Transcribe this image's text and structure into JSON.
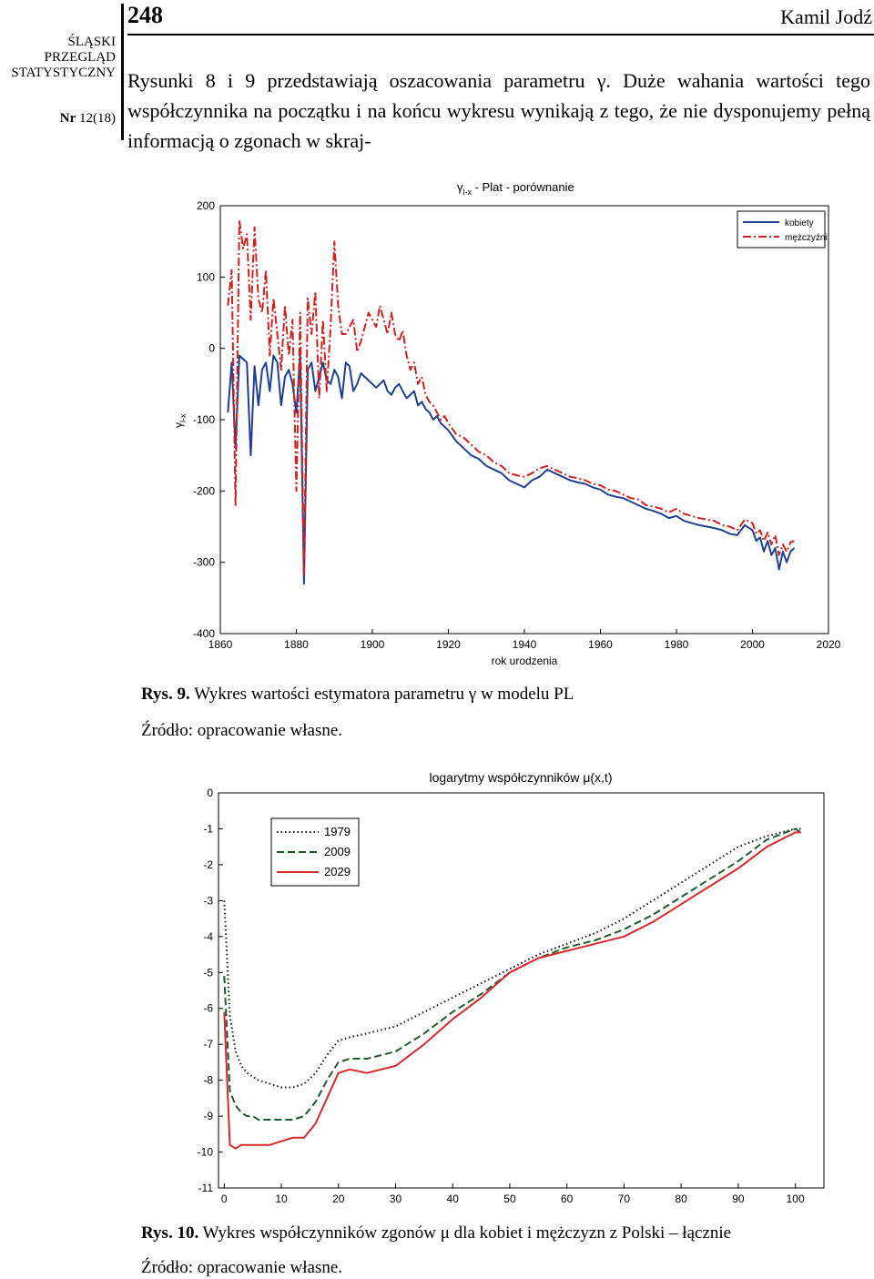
{
  "header": {
    "page_number": "248",
    "author": "Kamil Jodź",
    "journal_lines": [
      "ŚLĄSKI",
      "PRZEGLĄD",
      "STATYSTYCZNY"
    ],
    "issue_prefix": "Nr",
    "issue_number": "12(18)"
  },
  "body_text": "Rysunki 8 i 9 przedstawiają oszacowania parametru γ. Duże wahania wartości tego współczynnika na początku i na końcu wykresu wynikają z tego, że nie dysponujemy pełną informacją o zgonach w skraj-",
  "figure9": {
    "caption_label": "Rys. 9.",
    "caption_text": "Wykres wartości estymatora parametru γ w modelu PL",
    "source": "Źródło: opracowanie własne."
  },
  "figure10": {
    "caption_label": "Rys. 10.",
    "caption_text": "Wykres współczynników zgonów μ dla kobiet i mężczyzn z Polski – łącznie",
    "source": "Źródło: opracowanie własne."
  },
  "chart_data": [
    {
      "type": "line",
      "title_symbol": "γ",
      "title_subscript": "l-x",
      "title_rest": " - Plat - porównanie",
      "ylabel_symbol": "γ",
      "ylabel_subscript": "l-x",
      "xlabel": "rok urodzenia",
      "xlim": [
        1860,
        2020
      ],
      "ylim": [
        -400,
        200
      ],
      "xticks": [
        1860,
        1880,
        1900,
        1920,
        1940,
        1960,
        1980,
        2000,
        2020
      ],
      "yticks": [
        200,
        100,
        0,
        -100,
        -200,
        -300,
        -400
      ],
      "legend_position": "top-right",
      "series": [
        {
          "name": "kobiety",
          "color": "#1f3f8f",
          "style": "solid",
          "x": [
            1862,
            1863,
            1864,
            1865,
            1866,
            1867,
            1868,
            1869,
            1870,
            1871,
            1872,
            1873,
            1874,
            1875,
            1876,
            1877,
            1878,
            1879,
            1880,
            1881,
            1882,
            1883,
            1884,
            1885,
            1886,
            1887,
            1888,
            1889,
            1890,
            1891,
            1892,
            1893,
            1894,
            1895,
            1896,
            1897,
            1898,
            1899,
            1900,
            1901,
            1902,
            1903,
            1904,
            1905,
            1906,
            1907,
            1908,
            1909,
            1910,
            1911,
            1912,
            1913,
            1914,
            1915,
            1916,
            1917,
            1918,
            1919,
            1920,
            1922,
            1924,
            1926,
            1928,
            1930,
            1932,
            1934,
            1936,
            1938,
            1940,
            1942,
            1944,
            1946,
            1948,
            1950,
            1952,
            1954,
            1956,
            1958,
            1960,
            1962,
            1964,
            1966,
            1968,
            1970,
            1972,
            1974,
            1976,
            1978,
            1980,
            1982,
            1984,
            1986,
            1988,
            1990,
            1992,
            1994,
            1996,
            1998,
            2000,
            2001,
            2002,
            2003,
            2004,
            2005,
            2006,
            2007,
            2008,
            2009,
            2010,
            2011
          ],
          "values": [
            -90,
            -20,
            -140,
            -10,
            -15,
            -20,
            -150,
            -25,
            -80,
            -30,
            -20,
            -60,
            -10,
            -20,
            -80,
            -40,
            -30,
            -50,
            -90,
            -10,
            -330,
            -30,
            -20,
            -60,
            -40,
            -20,
            -45,
            -50,
            -30,
            -40,
            -70,
            -20,
            -25,
            -60,
            -50,
            -35,
            -40,
            -45,
            -50,
            -55,
            -50,
            -45,
            -60,
            -65,
            -55,
            -50,
            -60,
            -70,
            -65,
            -60,
            -80,
            -75,
            -85,
            -90,
            -100,
            -95,
            -105,
            -110,
            -115,
            -130,
            -140,
            -150,
            -155,
            -165,
            -170,
            -175,
            -185,
            -190,
            -195,
            -185,
            -180,
            -170,
            -175,
            -180,
            -185,
            -188,
            -190,
            -195,
            -198,
            -205,
            -208,
            -210,
            -215,
            -220,
            -225,
            -228,
            -232,
            -238,
            -235,
            -242,
            -245,
            -248,
            -250,
            -252,
            -255,
            -260,
            -262,
            -248,
            -255,
            -270,
            -265,
            -285,
            -270,
            -290,
            -280,
            -310,
            -285,
            -300,
            -285,
            -280
          ]
        },
        {
          "name": "mężczyźni",
          "color": "#cc2222",
          "style": "dashdot",
          "x": [
            1862,
            1863,
            1864,
            1865,
            1866,
            1867,
            1868,
            1869,
            1870,
            1871,
            1872,
            1873,
            1874,
            1875,
            1876,
            1877,
            1878,
            1879,
            1880,
            1881,
            1882,
            1883,
            1884,
            1885,
            1886,
            1887,
            1888,
            1889,
            1890,
            1891,
            1892,
            1893,
            1894,
            1895,
            1896,
            1897,
            1898,
            1899,
            1900,
            1901,
            1902,
            1903,
            1904,
            1905,
            1906,
            1907,
            1908,
            1909,
            1910,
            1911,
            1912,
            1913,
            1914,
            1915,
            1916,
            1917,
            1918,
            1919,
            1920,
            1922,
            1924,
            1926,
            1928,
            1930,
            1932,
            1934,
            1936,
            1938,
            1940,
            1942,
            1944,
            1946,
            1948,
            1950,
            1952,
            1954,
            1956,
            1958,
            1960,
            1962,
            1964,
            1966,
            1968,
            1970,
            1972,
            1974,
            1976,
            1978,
            1980,
            1982,
            1984,
            1986,
            1988,
            1990,
            1992,
            1994,
            1996,
            1998,
            2000,
            2001,
            2002,
            2003,
            2004,
            2005,
            2006,
            2007,
            2008,
            2009,
            2010,
            2011
          ],
          "values": [
            60,
            110,
            -220,
            180,
            140,
            160,
            40,
            170,
            70,
            50,
            110,
            -10,
            70,
            20,
            -30,
            60,
            -10,
            40,
            -200,
            50,
            -320,
            70,
            20,
            80,
            -70,
            40,
            -60,
            30,
            150,
            60,
            20,
            20,
            30,
            40,
            -5,
            10,
            30,
            50,
            40,
            30,
            60,
            40,
            20,
            50,
            20,
            10,
            25,
            -10,
            -30,
            -20,
            -50,
            -40,
            -65,
            -75,
            -80,
            -90,
            -100,
            -95,
            -105,
            -120,
            -125,
            -135,
            -145,
            -150,
            -160,
            -165,
            -175,
            -178,
            -180,
            -175,
            -168,
            -165,
            -170,
            -175,
            -180,
            -182,
            -185,
            -190,
            -192,
            -198,
            -200,
            -205,
            -210,
            -212,
            -220,
            -222,
            -225,
            -230,
            -225,
            -232,
            -235,
            -238,
            -240,
            -242,
            -248,
            -250,
            -255,
            -240,
            -245,
            -260,
            -255,
            -270,
            -258,
            -275,
            -262,
            -290,
            -275,
            -285,
            -272,
            -270
          ]
        }
      ]
    },
    {
      "type": "line",
      "title": "logarytmy współczynników μ(x,t)",
      "xlabel": "",
      "ylabel": "",
      "xlim": [
        -1,
        105
      ],
      "ylim": [
        -11,
        0
      ],
      "xticks": [
        0,
        10,
        20,
        30,
        40,
        50,
        60,
        70,
        80,
        90,
        100
      ],
      "yticks": [
        0,
        -1,
        -2,
        -3,
        -4,
        -5,
        -6,
        -7,
        -8,
        -9,
        -10,
        -11
      ],
      "legend_position": "top-left",
      "series": [
        {
          "name": "1979",
          "color": "#111111",
          "style": "dotted",
          "x": [
            0,
            1,
            2,
            3,
            4,
            5,
            6,
            8,
            10,
            12,
            14,
            16,
            18,
            20,
            22,
            25,
            30,
            35,
            40,
            45,
            50,
            55,
            60,
            65,
            70,
            75,
            80,
            85,
            90,
            95,
            100,
            101
          ],
          "values": [
            -3.0,
            -6.2,
            -7.2,
            -7.6,
            -7.8,
            -7.9,
            -8.0,
            -8.1,
            -8.2,
            -8.2,
            -8.1,
            -7.8,
            -7.3,
            -6.9,
            -6.8,
            -6.7,
            -6.5,
            -6.1,
            -5.7,
            -5.3,
            -4.9,
            -4.5,
            -4.2,
            -3.9,
            -3.5,
            -3.0,
            -2.5,
            -2.0,
            -1.5,
            -1.2,
            -1.0,
            -1.0
          ]
        },
        {
          "name": "2009",
          "color": "#1f5a2a",
          "style": "dashed",
          "x": [
            0,
            1,
            2,
            3,
            4,
            5,
            6,
            8,
            10,
            12,
            14,
            16,
            18,
            20,
            22,
            25,
            30,
            35,
            40,
            45,
            50,
            55,
            60,
            65,
            70,
            75,
            80,
            85,
            90,
            95,
            100,
            101
          ],
          "values": [
            -5.1,
            -8.3,
            -8.7,
            -8.9,
            -9.0,
            -9.0,
            -9.1,
            -9.1,
            -9.1,
            -9.1,
            -9.0,
            -8.6,
            -8.0,
            -7.5,
            -7.4,
            -7.4,
            -7.2,
            -6.7,
            -6.1,
            -5.6,
            -5.0,
            -4.6,
            -4.3,
            -4.1,
            -3.8,
            -3.4,
            -2.9,
            -2.4,
            -1.9,
            -1.3,
            -1.0,
            -1.1
          ]
        },
        {
          "name": "2029",
          "color": "#d42a2a",
          "style": "solid",
          "x": [
            0,
            1,
            2,
            3,
            4,
            5,
            6,
            8,
            10,
            12,
            14,
            16,
            18,
            20,
            22,
            25,
            30,
            35,
            40,
            45,
            50,
            55,
            60,
            65,
            70,
            75,
            80,
            85,
            90,
            95,
            100,
            101
          ],
          "values": [
            -6.1,
            -9.8,
            -9.9,
            -9.8,
            -9.8,
            -9.8,
            -9.8,
            -9.8,
            -9.7,
            -9.6,
            -9.6,
            -9.2,
            -8.5,
            -7.8,
            -7.7,
            -7.8,
            -7.6,
            -7.0,
            -6.3,
            -5.7,
            -5.0,
            -4.6,
            -4.4,
            -4.2,
            -4.0,
            -3.6,
            -3.1,
            -2.6,
            -2.1,
            -1.5,
            -1.1,
            -1.1
          ]
        }
      ]
    }
  ]
}
